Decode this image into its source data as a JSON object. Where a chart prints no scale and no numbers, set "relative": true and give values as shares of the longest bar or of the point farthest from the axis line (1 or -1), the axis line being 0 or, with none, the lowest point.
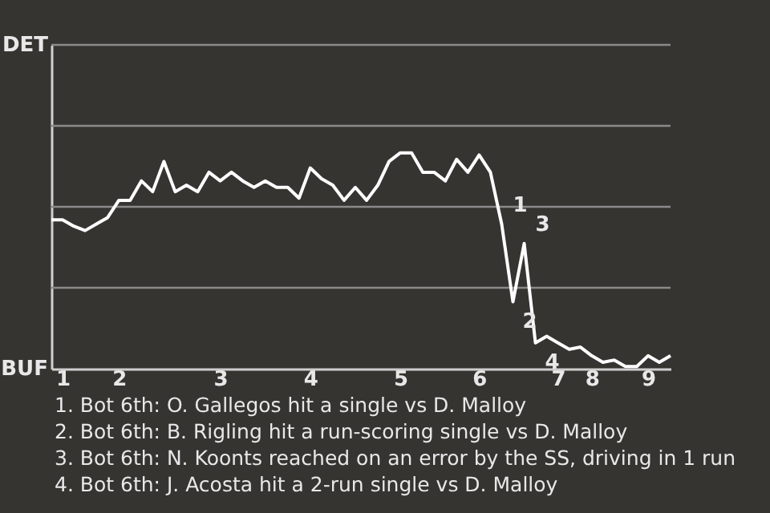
{
  "chart_data": {
    "type": "line",
    "relative": true,
    "categories": [
      null,
      "1",
      null,
      null,
      null,
      null,
      "2",
      null,
      null,
      null,
      null,
      null,
      null,
      null,
      null,
      "3",
      null,
      null,
      null,
      null,
      null,
      null,
      null,
      "4",
      null,
      null,
      null,
      null,
      null,
      null,
      null,
      "5",
      null,
      null,
      null,
      null,
      null,
      null,
      "6",
      null,
      null,
      null,
      null,
      null,
      null,
      "7",
      null,
      null,
      "8",
      null,
      null,
      null,
      null,
      "9",
      null,
      null
    ],
    "series": [
      {
        "color": "#ffffff",
        "values": [
          0.69,
          0.69,
          0.66,
          0.64,
          0.67,
          0.7,
          0.78,
          0.78,
          0.87,
          0.82,
          0.96,
          0.82,
          0.85,
          0.82,
          0.91,
          0.87,
          0.91,
          0.87,
          0.84,
          0.87,
          0.84,
          0.84,
          0.79,
          0.93,
          0.88,
          0.85,
          0.78,
          0.84,
          0.78,
          0.85,
          0.96,
          1,
          1,
          0.91,
          0.91,
          0.87,
          0.97,
          0.91,
          0.99,
          0.91,
          0.67,
          0.31,
          0.58,
          0.12,
          0.15,
          0.12,
          0.09,
          0.1,
          0.06,
          0.03,
          0.04,
          0.01,
          0.01,
          0.06,
          0.03,
          0.06
        ]
      }
    ],
    "marker": "none",
    "line_style": "solid",
    "ref_lines": [
      {
        "axis": "y",
        "value": 0.375,
        "color": "#8a8a8a"
      },
      {
        "axis": "y",
        "value": 0.75,
        "color": "#8a8a8a"
      },
      {
        "axis": "y",
        "value": 1.125,
        "color": "#8a8a8a"
      },
      {
        "axis": "y",
        "value": 1.5,
        "color": "#8a8a8a"
      }
    ],
    "annotations": [
      "DET",
      "BUF",
      "1",
      "2",
      "3",
      "4",
      "1. Bot 6th: O. Gallegos hit a single vs D. Malloy",
      "2. Bot 6th: B. Rigling hit a run-scoring single vs D. Malloy",
      "3. Bot 6th: N. Koonts reached on an error by the SS, driving in 1 run",
      "4. Bot 6th: J. Acosta hit a 2-run single vs D. Malloy"
    ]
  }
}
